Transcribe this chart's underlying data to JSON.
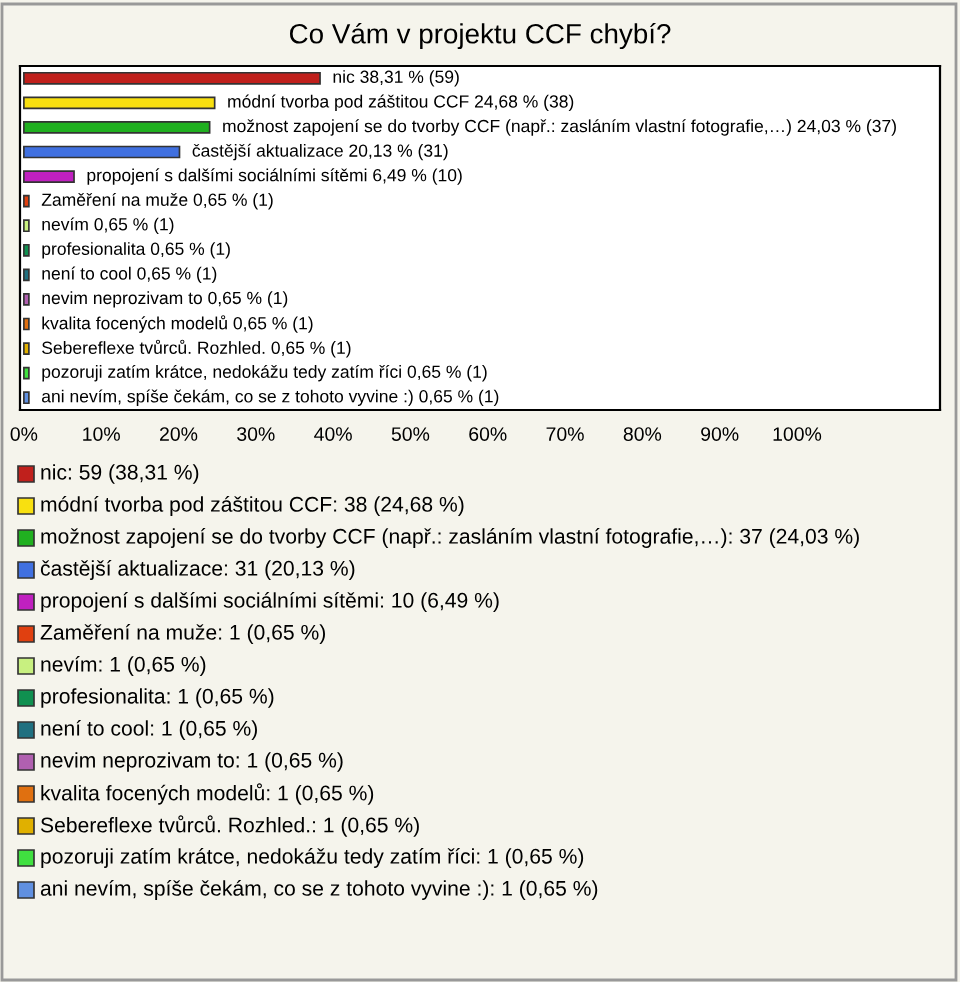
{
  "chart_data": {
    "type": "bar",
    "orientation": "horizontal",
    "title": "Co Vám v projektu CCF chybí?",
    "categories": [
      "nic",
      "módní tvorba pod záštitou CCF",
      "možnost zapojení se do tvorby CCF (např.: zasláním vlastní fotografie,…)",
      "častější aktualizace",
      "propojení s dalšími sociálními sítěmi",
      "Zaměření na muže",
      "nevím",
      "profesionalita",
      "není to cool",
      "nevim neprozivam to",
      "kvalita focených modelů",
      "Sebereflexe tvůrců. Rozhled.",
      "pozoruji zatím krátce, nedokážu tedy zatím říci",
      "ani nevím, spíše čekám, co se z tohoto vyvine :)"
    ],
    "values": [
      38.31,
      24.68,
      24.03,
      20.13,
      6.49,
      0.65,
      0.65,
      0.65,
      0.65,
      0.65,
      0.65,
      0.65,
      0.65,
      0.65
    ],
    "colors": [
      "#c0201c",
      "#f8e010",
      "#20b020",
      "#4070e0",
      "#c020c0",
      "#e04010",
      "#c8f080",
      "#109050",
      "#207080",
      "#b060b0",
      "#e07010",
      "#e0b000",
      "#40e040",
      "#6090e0"
    ],
    "value_labels": [
      "38,31 % (59)",
      "24,68 % (38)",
      "24,03 % (37)",
      "20,13 % (31)",
      "6,49 % (10)",
      "0,65 % (1)",
      "0,65 % (1)",
      "0,65 % (1)",
      "0,65 % (1)",
      "0,65 % (1)",
      "0,65 % (1)",
      "0,65 % (1)",
      "0,65 % (1)",
      "0,65 % (1)"
    ],
    "annotations": [
      "nic: 59 (38,31 %)",
      "módní tvorba pod záštitou CCF: 38 (24,68 %)",
      "možnost zapojení se do tvorby CCF (např.: zasláním vlastní fotografie,…): 37 (24,03 %)",
      "častější aktualizace: 31 (20,13 %)",
      "propojení s dalšími sociálními sítěmi: 10 (6,49 %)",
      "Zaměření na muže: 1 (0,65 %)",
      "nevím: 1 (0,65 %)",
      "profesionalita: 1 (0,65 %)",
      "není to cool: 1 (0,65 %)",
      "nevim neprozivam to: 1 (0,65 %)",
      "kvalita focených modelů: 1 (0,65 %)",
      "Sebereflexe tvůrců. Rozhled.: 1 (0,65 %)",
      "pozoruji zatím krátce, nedokážu tedy zatím říci: 1 (0,65 %)",
      "ani nevím, spíše čekám, co se z tohoto vyvine :): 1 (0,65 %)"
    ],
    "xlim": [
      -0.5,
      118.5
    ],
    "xticks": [
      {
        "value": 0,
        "label": "0%"
      },
      {
        "value": 10,
        "label": "10%"
      },
      {
        "value": 20,
        "label": "20%"
      },
      {
        "value": 30,
        "label": "30%"
      },
      {
        "value": 40,
        "label": "40%"
      },
      {
        "value": 50,
        "label": "50%"
      },
      {
        "value": 60,
        "label": "60%"
      },
      {
        "value": 70,
        "label": "70%"
      },
      {
        "value": 80,
        "label": "80%"
      },
      {
        "value": 90,
        "label": "90%"
      },
      {
        "value": 100,
        "label": "100%"
      }
    ],
    "tick_labels": "x",
    "grid": false
  }
}
